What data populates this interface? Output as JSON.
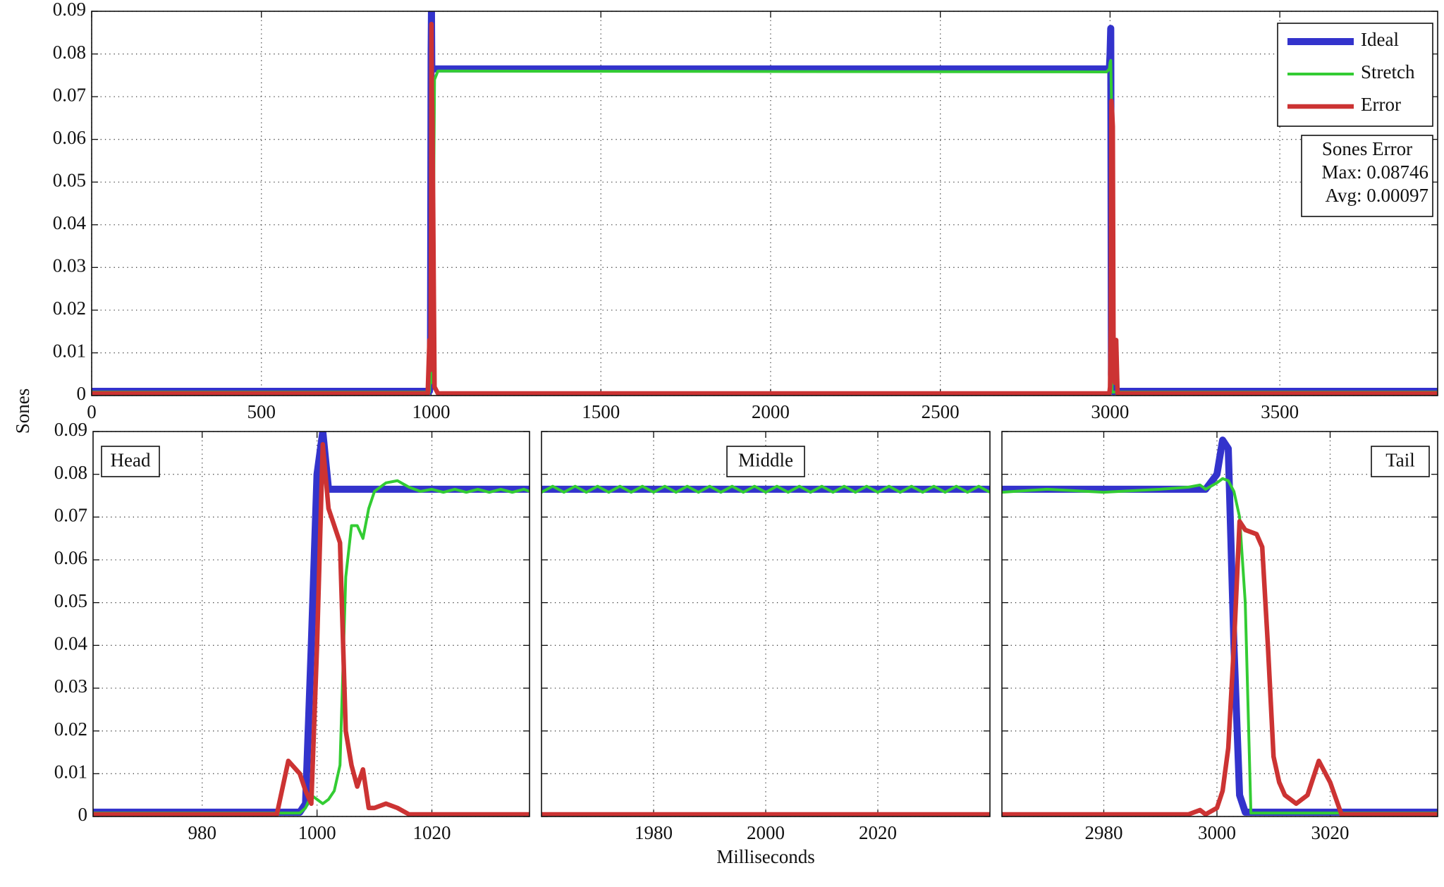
{
  "chart_data": [
    {
      "type": "line",
      "ylabel": "Sones",
      "legend": "upper right",
      "grid": true,
      "annotation": [
        "Sones Error",
        "Max: 0.08746",
        "Avg: 0.00097"
      ],
      "xlim": [
        0,
        3965
      ],
      "ylim": [
        0,
        0.09
      ],
      "xticks": [
        0,
        500,
        1000,
        1500,
        2000,
        2500,
        3000,
        3500
      ],
      "yticks": [
        0,
        0.01,
        0.02,
        0.03,
        0.04,
        0.05,
        0.06,
        0.07,
        0.08,
        0.09
      ],
      "x": [
        0,
        990,
        995,
        998,
        1000,
        1001,
        1002,
        1004,
        1010,
        1020,
        2990,
        2998,
        3000,
        3002,
        3004,
        3006,
        3008,
        3010,
        3014,
        3018,
        3022,
        3965
      ],
      "series": [
        {
          "name": "Ideal",
          "color": "#3333cc",
          "linewidth": 10,
          "values": [
            0.001,
            0.001,
            0.001,
            0.003,
            0.08,
            0.09,
            0.0765,
            0.0765,
            0.0765,
            0.0765,
            0.0765,
            0.0765,
            0.08,
            0.086,
            0.005,
            0.001,
            0.001,
            0.001,
            0.001,
            0.001,
            0.001,
            0.001
          ]
        },
        {
          "name": "Stretch",
          "color": "#33cc33",
          "linewidth": 4,
          "values": [
            0.0008,
            0.0008,
            0.0008,
            0.005,
            0.004,
            0.003,
            0.004,
            0.012,
            0.074,
            0.076,
            0.0758,
            0.0765,
            0.078,
            0.0785,
            0.07,
            0.0008,
            0.0008,
            0.0008,
            0.0008,
            0.0008,
            0.0008,
            0.0008
          ]
        },
        {
          "name": "Error",
          "color": "#cc3333",
          "linewidth": 6.5,
          "values": [
            0.0005,
            0.0005,
            0.013,
            0.006,
            0.04,
            0.087,
            0.072,
            0.064,
            0.002,
            0.0005,
            0.0005,
            0.0005,
            0.002,
            0.016,
            0.069,
            0.0665,
            0.063,
            0.014,
            0.003,
            0.013,
            0.0005,
            0.0005
          ]
        }
      ]
    },
    {
      "type": "line",
      "title": "Head",
      "grid": true,
      "xlim": [
        961,
        1037
      ],
      "ylim": [
        0,
        0.09
      ],
      "xticks": [
        980,
        1000,
        1020
      ],
      "yticks": [
        0,
        0.01,
        0.02,
        0.03,
        0.04,
        0.05,
        0.06,
        0.07,
        0.08,
        0.09
      ],
      "x": [
        961,
        970,
        980,
        990,
        993,
        995,
        997,
        998,
        999,
        1000,
        1001,
        1002,
        1003,
        1004,
        1005,
        1006,
        1007,
        1008,
        1009,
        1010,
        1012,
        1014,
        1016,
        1018,
        1020,
        1022,
        1024,
        1026,
        1028,
        1030,
        1032,
        1034,
        1036,
        1037
      ],
      "series": [
        {
          "color": "#3333cc",
          "linewidth": 10,
          "values": [
            0.001,
            0.001,
            0.001,
            0.001,
            0.001,
            0.001,
            0.001,
            0.003,
            0.04,
            0.08,
            0.09,
            0.0765,
            0.0765,
            0.0765,
            0.0765,
            0.0765,
            0.0765,
            0.0765,
            0.0765,
            0.0765,
            0.0765,
            0.0765,
            0.0765,
            0.0765,
            0.0765,
            0.0765,
            0.0765,
            0.0765,
            0.0765,
            0.0765,
            0.0765,
            0.0765,
            0.0765,
            0.0765
          ]
        },
        {
          "color": "#33cc33",
          "linewidth": 4,
          "values": [
            0.0008,
            0.0008,
            0.0008,
            0.0008,
            0.0008,
            0.0008,
            0.0008,
            0.002,
            0.005,
            0.004,
            0.003,
            0.004,
            0.006,
            0.012,
            0.056,
            0.068,
            0.068,
            0.065,
            0.072,
            0.076,
            0.078,
            0.0785,
            0.077,
            0.076,
            0.0765,
            0.0758,
            0.0765,
            0.0758,
            0.0765,
            0.0758,
            0.0765,
            0.0758,
            0.0765,
            0.076
          ]
        },
        {
          "color": "#cc3333",
          "linewidth": 6.5,
          "values": [
            0.0005,
            0.0005,
            0.0005,
            0.0005,
            0.0005,
            0.013,
            0.01,
            0.006,
            0.003,
            0.04,
            0.087,
            0.072,
            0.068,
            0.064,
            0.02,
            0.012,
            0.007,
            0.011,
            0.002,
            0.002,
            0.003,
            0.002,
            0.0005,
            0.0005,
            0.0005,
            0.0005,
            0.0005,
            0.0005,
            0.0005,
            0.0005,
            0.0005,
            0.0005,
            0.0005,
            0.0005
          ]
        }
      ]
    },
    {
      "type": "line",
      "title": "Middle",
      "xlabel": "Milliseconds",
      "grid": true,
      "ytick_labels": false,
      "xlim": [
        1960,
        2040
      ],
      "ylim": [
        0,
        0.09
      ],
      "xticks": [
        1980,
        2000,
        2020
      ],
      "yticks": [
        0,
        0.01,
        0.02,
        0.03,
        0.04,
        0.05,
        0.06,
        0.07,
        0.08,
        0.09
      ],
      "x": [
        1960,
        1962,
        1964,
        1966,
        1968,
        1970,
        1972,
        1974,
        1976,
        1978,
        1980,
        1982,
        1984,
        1986,
        1988,
        1990,
        1992,
        1994,
        1996,
        1998,
        2000,
        2002,
        2004,
        2006,
        2008,
        2010,
        2012,
        2014,
        2016,
        2018,
        2020,
        2022,
        2024,
        2026,
        2028,
        2030,
        2032,
        2034,
        2036,
        2038,
        2040
      ],
      "series": [
        {
          "color": "#3333cc",
          "linewidth": 10,
          "values": [
            0.0765,
            0.0765,
            0.0765,
            0.0765,
            0.0765,
            0.0765,
            0.0765,
            0.0765,
            0.0765,
            0.0765,
            0.0765,
            0.0765,
            0.0765,
            0.0765,
            0.0765,
            0.0765,
            0.0765,
            0.0765,
            0.0765,
            0.0765,
            0.0765,
            0.0765,
            0.0765,
            0.0765,
            0.0765,
            0.0765,
            0.0765,
            0.0765,
            0.0765,
            0.0765,
            0.0765,
            0.0765,
            0.0765,
            0.0765,
            0.0765,
            0.0765,
            0.0765,
            0.0765,
            0.0765,
            0.0765,
            0.0765
          ]
        },
        {
          "color": "#33cc33",
          "linewidth": 4,
          "values": [
            0.0758,
            0.0772,
            0.0758,
            0.0772,
            0.0758,
            0.0772,
            0.0758,
            0.0772,
            0.0758,
            0.0772,
            0.0758,
            0.0772,
            0.0758,
            0.0772,
            0.0758,
            0.0772,
            0.0758,
            0.0772,
            0.0758,
            0.0772,
            0.0758,
            0.0772,
            0.0758,
            0.0772,
            0.0758,
            0.0772,
            0.0758,
            0.0772,
            0.0758,
            0.0772,
            0.0758,
            0.0772,
            0.0758,
            0.0772,
            0.0758,
            0.0772,
            0.0758,
            0.0772,
            0.0758,
            0.0772,
            0.0758
          ]
        },
        {
          "color": "#cc3333",
          "linewidth": 6.5,
          "values": [
            0.0005,
            0.0005,
            0.0005,
            0.0005,
            0.0005,
            0.0005,
            0.0005,
            0.0005,
            0.0005,
            0.0005,
            0.0005,
            0.0005,
            0.0005,
            0.0005,
            0.0005,
            0.0005,
            0.0005,
            0.0005,
            0.0005,
            0.0005,
            0.0005,
            0.0005,
            0.0005,
            0.0005,
            0.0005,
            0.0005,
            0.0005,
            0.0005,
            0.0005,
            0.0005,
            0.0005,
            0.0005,
            0.0005,
            0.0005,
            0.0005,
            0.0005,
            0.0005,
            0.0005,
            0.0005,
            0.0005,
            0.0005
          ]
        }
      ]
    },
    {
      "type": "line",
      "title": "Tail",
      "grid": true,
      "ytick_labels": false,
      "xlim": [
        2962,
        3039
      ],
      "ylim": [
        0,
        0.09
      ],
      "xticks": [
        2980,
        3000,
        3020
      ],
      "yticks": [
        0,
        0.01,
        0.02,
        0.03,
        0.04,
        0.05,
        0.06,
        0.07,
        0.08,
        0.09
      ],
      "x": [
        2962,
        2970,
        2980,
        2990,
        2995,
        2997,
        2998,
        3000,
        3001,
        3002,
        3003,
        3004,
        3005,
        3006,
        3007,
        3008,
        3009,
        3010,
        3011,
        3012,
        3014,
        3016,
        3017,
        3018,
        3020,
        3022,
        3030,
        3039
      ],
      "series": [
        {
          "color": "#3333cc",
          "linewidth": 10,
          "values": [
            0.0765,
            0.0765,
            0.0765,
            0.0765,
            0.0765,
            0.0765,
            0.0765,
            0.08,
            0.088,
            0.086,
            0.04,
            0.005,
            0.001,
            0.001,
            0.001,
            0.001,
            0.001,
            0.001,
            0.001,
            0.001,
            0.001,
            0.001,
            0.001,
            0.001,
            0.001,
            0.001,
            0.001,
            0.001
          ]
        },
        {
          "color": "#33cc33",
          "linewidth": 4,
          "values": [
            0.0758,
            0.0765,
            0.0758,
            0.0765,
            0.077,
            0.0775,
            0.0765,
            0.078,
            0.079,
            0.0785,
            0.076,
            0.07,
            0.05,
            0.0008,
            0.0008,
            0.0008,
            0.0008,
            0.0008,
            0.0008,
            0.0008,
            0.0008,
            0.0008,
            0.0008,
            0.0008,
            0.0008,
            0.0008,
            0.0008,
            0.0008
          ]
        },
        {
          "color": "#cc3333",
          "linewidth": 6.5,
          "values": [
            0.0005,
            0.0005,
            0.0005,
            0.0005,
            0.0005,
            0.0015,
            0.0005,
            0.002,
            0.006,
            0.016,
            0.04,
            0.069,
            0.067,
            0.0665,
            0.066,
            0.063,
            0.04,
            0.014,
            0.008,
            0.005,
            0.003,
            0.005,
            0.009,
            0.013,
            0.008,
            0.0005,
            0.0005,
            0.0005
          ]
        }
      ]
    }
  ]
}
